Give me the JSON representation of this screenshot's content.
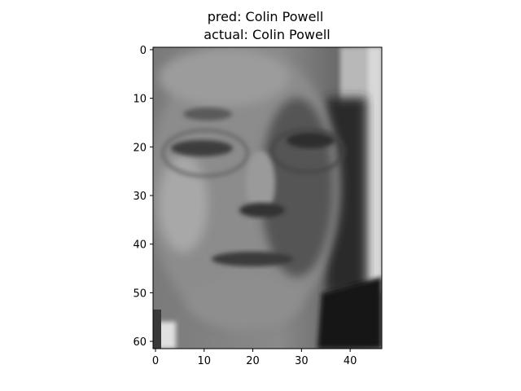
{
  "chart_data": {
    "type": "heatmap",
    "subtitle": "",
    "title_lines": [
      "pred: Colin Powell",
      "actual: Colin Powell"
    ],
    "xlabel": "",
    "ylabel": "",
    "xlim": [
      -0.5,
      46.5
    ],
    "ylim": [
      61.5,
      -0.5
    ],
    "x_ticks": [
      0,
      10,
      20,
      30,
      40
    ],
    "y_ticks": [
      0,
      10,
      20,
      30,
      40,
      50,
      60
    ],
    "grid": false,
    "colormap": "gray",
    "image_content": "grayscale face photograph"
  },
  "colors": {
    "axis": "#000000",
    "background": "#ffffff"
  }
}
